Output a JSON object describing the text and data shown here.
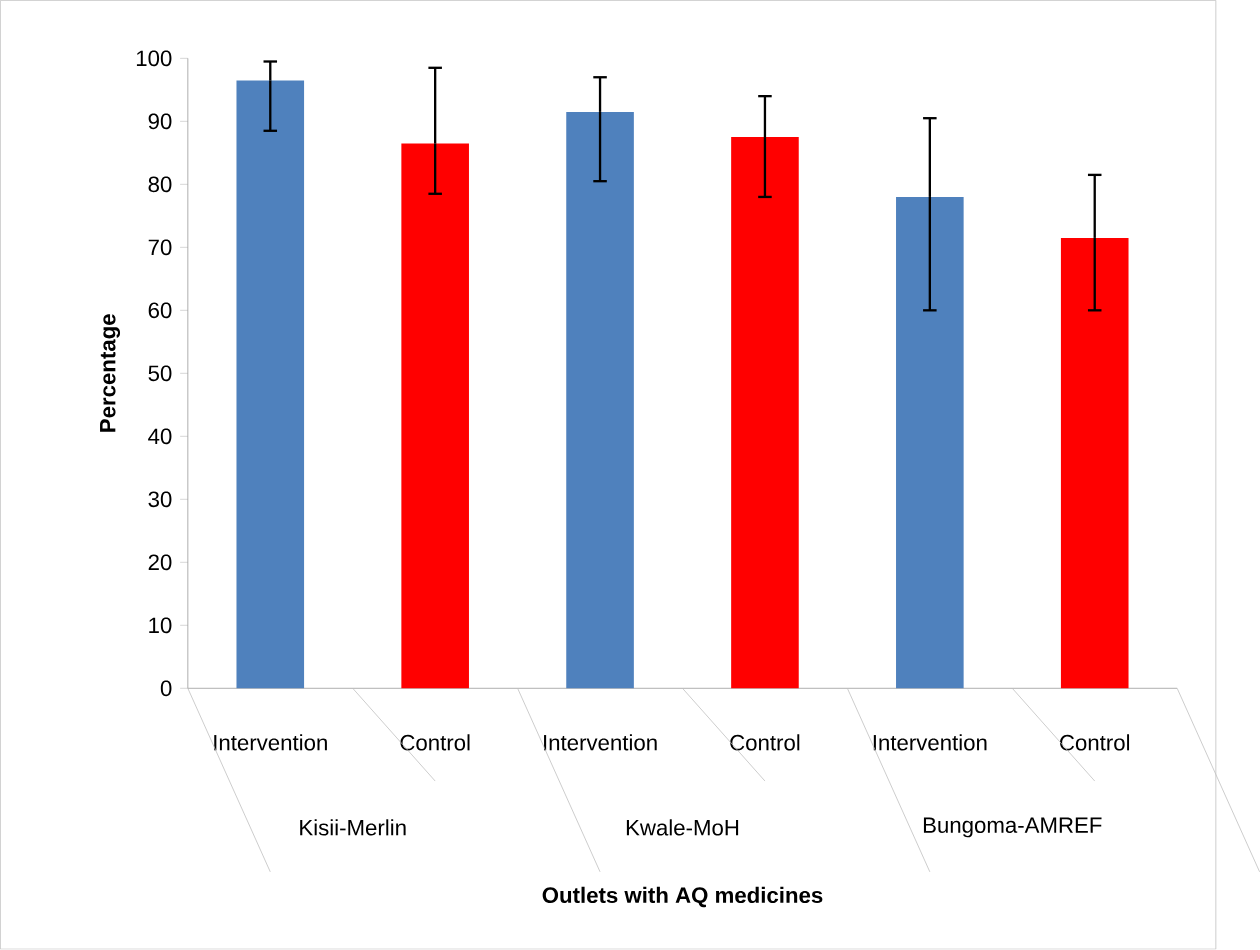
{
  "chart_data": {
    "type": "bar",
    "xlabel": "Outlets with AQ medicines",
    "ylabel": "Percentage",
    "categories": [
      "Kisii-Merlin",
      "Kwale-MoH",
      "Bungoma-AMREF"
    ],
    "series": [
      {
        "name": "Intervention",
        "color": "#4f81bd",
        "values": [
          96.5,
          91.5,
          78
        ],
        "errors": [
          [
            88.5,
            99.5
          ],
          [
            80.5,
            97
          ],
          [
            60,
            90.5
          ]
        ]
      },
      {
        "name": "Control",
        "color": "#ff0000",
        "values": [
          86.5,
          87.5,
          71.5
        ],
        "errors": [
          [
            78.5,
            98.5
          ],
          [
            78,
            94
          ],
          [
            60,
            81.5
          ]
        ]
      }
    ],
    "ylim": [
      0,
      100
    ],
    "yticks": [
      0,
      10,
      20,
      30,
      40,
      50,
      60,
      70,
      80,
      90,
      100
    ]
  }
}
